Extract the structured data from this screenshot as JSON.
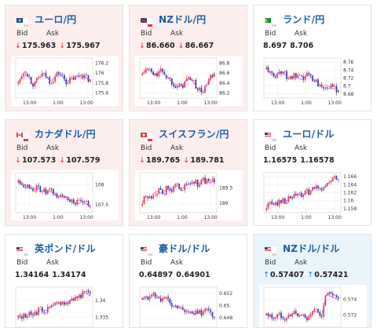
{
  "header": {
    "bid_label": "Bid",
    "ask_label": "Ask"
  },
  "colors": {
    "down_card_bg": "#fdeeee",
    "up_card_bg": "#eaf4fb",
    "bull_candle": "#e53935",
    "bear_candle": "#1e3a8a",
    "moving_average": "#d946ef",
    "down_arrow": "#d8322f",
    "up_arrow": "#1f7bc0",
    "pair_title": "#1a5da8"
  },
  "cards": [
    {
      "pair": "ユーロ/円",
      "flag": "eu-flag-icon",
      "state": "down",
      "bid": "175.963",
      "ask": "175.967",
      "arrow": "down",
      "chart": {
        "type": "candlestick",
        "yticks": [
          "176.2",
          "176",
          "175.8",
          "175.6"
        ],
        "xticks": [
          "13:00",
          "1:00",
          "13:00"
        ],
        "ylim": [
          175.5,
          176.3
        ]
      }
    },
    {
      "pair": "NZドル/円",
      "flag": "nz-flag-icon",
      "state": "down",
      "bid": "86.660",
      "ask": "86.667",
      "arrow": "down",
      "chart": {
        "type": "candlestick",
        "yticks": [
          "86.8",
          "86.6",
          "86.4",
          "86.2"
        ],
        "xticks": [
          "13:00",
          "1:00",
          "13:00"
        ],
        "ylim": [
          86.1,
          86.9
        ]
      }
    },
    {
      "pair": "ランド/円",
      "flag": "za-flag-icon",
      "state": "flat",
      "bid": "8.697",
      "ask": "8.706",
      "arrow": "none",
      "chart": {
        "type": "candlestick",
        "yticks": [
          "8.76",
          "8.74",
          "8.72",
          "8.7",
          "8.68"
        ],
        "xticks": [
          "13:00",
          "1:00",
          "13:00"
        ],
        "ylim": [
          8.67,
          8.77
        ]
      }
    },
    {
      "pair": "カナダドル/円",
      "flag": "ca-flag-icon",
      "state": "down",
      "bid": "107.573",
      "ask": "107.579",
      "arrow": "down",
      "chart": {
        "type": "candlestick",
        "yticks": [
          "108",
          "107.5"
        ],
        "xticks": [
          "13:00",
          "1:00",
          "13:00"
        ],
        "ylim": [
          107.3,
          108.3
        ]
      }
    },
    {
      "pair": "スイスフラン/円",
      "flag": "ch-flag-icon",
      "state": "down",
      "bid": "189.765",
      "ask": "189.781",
      "arrow": "down",
      "chart": {
        "type": "candlestick",
        "yticks": [
          "189.5",
          "189"
        ],
        "xticks": [
          "13:00",
          "1:00",
          "13:00"
        ],
        "ylim": [
          188.7,
          190.0
        ]
      }
    },
    {
      "pair": "ユーロ/ドル",
      "flag": "us-flag-icon",
      "state": "flat",
      "bid": "1.16575",
      "ask": "1.16578",
      "arrow": "none",
      "chart": {
        "type": "candlestick",
        "yticks": [
          "1.166",
          "1.164",
          "1.162",
          "1.16",
          "1.158"
        ],
        "xticks": [
          "13:00",
          "1:00",
          "13:00"
        ],
        "ylim": [
          1.157,
          1.167
        ]
      }
    },
    {
      "pair": "英ポンド/ドル",
      "flag": "us-flag-icon",
      "state": "flat",
      "bid": "1.34164",
      "ask": "1.34174",
      "arrow": "none",
      "chart": {
        "type": "candlestick",
        "yticks": [
          "1.34",
          "1.335"
        ],
        "xticks": [],
        "ylim": [
          1.332,
          1.344
        ]
      }
    },
    {
      "pair": "豪ドル/ドル",
      "flag": "us-flag-icon",
      "state": "flat",
      "bid": "0.64897",
      "ask": "0.64901",
      "arrow": "none",
      "chart": {
        "type": "candlestick",
        "yticks": [
          "0.652",
          "0.65",
          "0.648"
        ],
        "xticks": [],
        "ylim": [
          0.6465,
          0.653
        ]
      }
    },
    {
      "pair": "NZドル/ドル",
      "flag": "us-flag-icon",
      "state": "up",
      "bid": "0.57407",
      "ask": "0.57421",
      "arrow": "up",
      "chart": {
        "type": "candlestick",
        "yticks": [
          "0.574",
          "0.572"
        ],
        "xticks": [],
        "ylim": [
          0.5705,
          0.5755
        ]
      }
    }
  ]
}
